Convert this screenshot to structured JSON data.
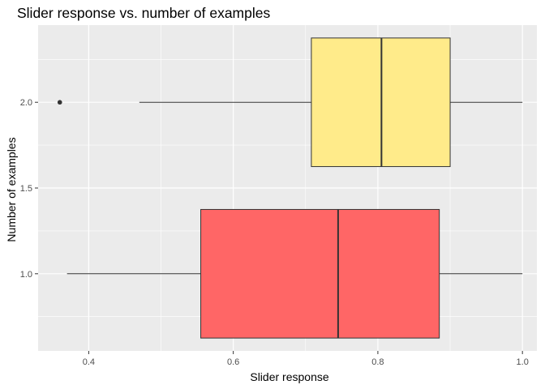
{
  "chart_data": {
    "type": "boxplot",
    "orientation": "horizontal",
    "title": "Slider response vs. number of examples",
    "xlabel": "Slider response",
    "ylabel": "Number of examples",
    "xlim": [
      0.33,
      1.02
    ],
    "ylim": [
      0.55,
      2.45
    ],
    "x_ticks": [
      "0.4",
      "0.6",
      "0.8",
      "1.0"
    ],
    "y_ticks": [
      "1.0",
      "1.5",
      "2.0"
    ],
    "grid": true,
    "legend": "none",
    "panel_background": "#ebebeb",
    "series": [
      {
        "y": 1.0,
        "whisker_low": 0.37,
        "q1": 0.555,
        "median": 0.745,
        "q3": 0.885,
        "whisker_high": 1.0,
        "outliers": [],
        "box_half_height": 0.375,
        "fill": "#ff6666"
      },
      {
        "y": 2.0,
        "whisker_low": 0.47,
        "q1": 0.708,
        "median": 0.805,
        "q3": 0.9,
        "whisker_high": 1.0,
        "outliers": [
          0.36
        ],
        "box_half_height": 0.375,
        "fill": "#ffeb8a"
      }
    ]
  }
}
